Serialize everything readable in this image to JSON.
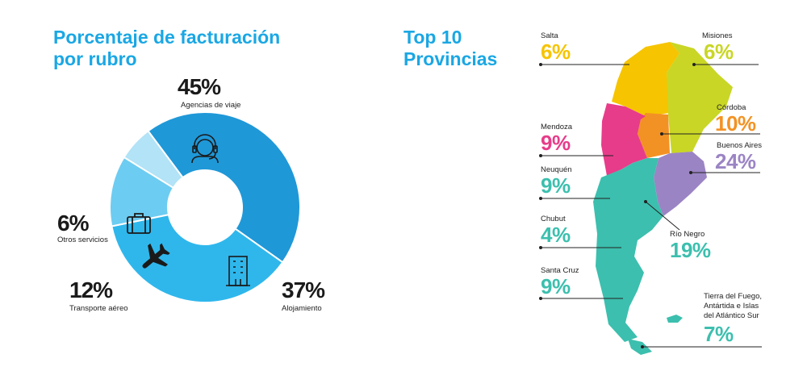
{
  "donut": {
    "title_line1": "Porcentaje de facturación",
    "title_line2": "por rubro"
  },
  "map": {
    "title_line1": "Top 10",
    "title_line2": "Provincias"
  },
  "chart_data": [
    {
      "type": "pie",
      "title": "Porcentaje de facturación por rubro",
      "categories": [
        "Agencias de viaje",
        "Alojamiento",
        "Transporte aéreo",
        "Otros servicios"
      ],
      "values": [
        45,
        37,
        12,
        6
      ],
      "value_labels": [
        "45%",
        "37%",
        "12%",
        "6%"
      ],
      "colors": [
        "#1f98d8",
        "#2fb7ec",
        "#6dccf1",
        "#b2e3f7"
      ],
      "icons": [
        "headset-agent-icon",
        "hotel-building-icon",
        "airplane-icon",
        "suitcase-icon"
      ]
    },
    {
      "type": "table",
      "title": "Top 10 Provincias",
      "provinces": [
        {
          "name": "Salta",
          "value": 6,
          "label": "6%",
          "color": "#f6c400"
        },
        {
          "name": "Misiones",
          "value": 6,
          "label": "6%",
          "color": "#c9d625"
        },
        {
          "name": "Córdoba",
          "value": 10,
          "label": "10%",
          "color": "#f39224"
        },
        {
          "name": "Mendoza",
          "value": 9,
          "label": "9%",
          "color": "#e73c8a"
        },
        {
          "name": "Buenos Aires",
          "value": 24,
          "label": "24%",
          "color": "#9b84c4"
        },
        {
          "name": "Neuquén",
          "value": 9,
          "label": "9%",
          "color": "#3cbfae"
        },
        {
          "name": "Chubut",
          "value": 4,
          "label": "4%",
          "color": "#3cbfae"
        },
        {
          "name": "Río Negro",
          "value": 19,
          "label": "19%",
          "color": "#3cbfae"
        },
        {
          "name": "Santa Cruz",
          "value": 9,
          "label": "9%",
          "color": "#3cbfae"
        },
        {
          "name": "Tierra del Fuego, Antártida e Islas del Atlántico Sur",
          "name_lines": [
            "Tierra del Fuego,",
            "Antártida e Islas",
            "del Atlántico Sur"
          ],
          "value": 7,
          "label": "7%",
          "color": "#3cbfae"
        }
      ]
    }
  ]
}
